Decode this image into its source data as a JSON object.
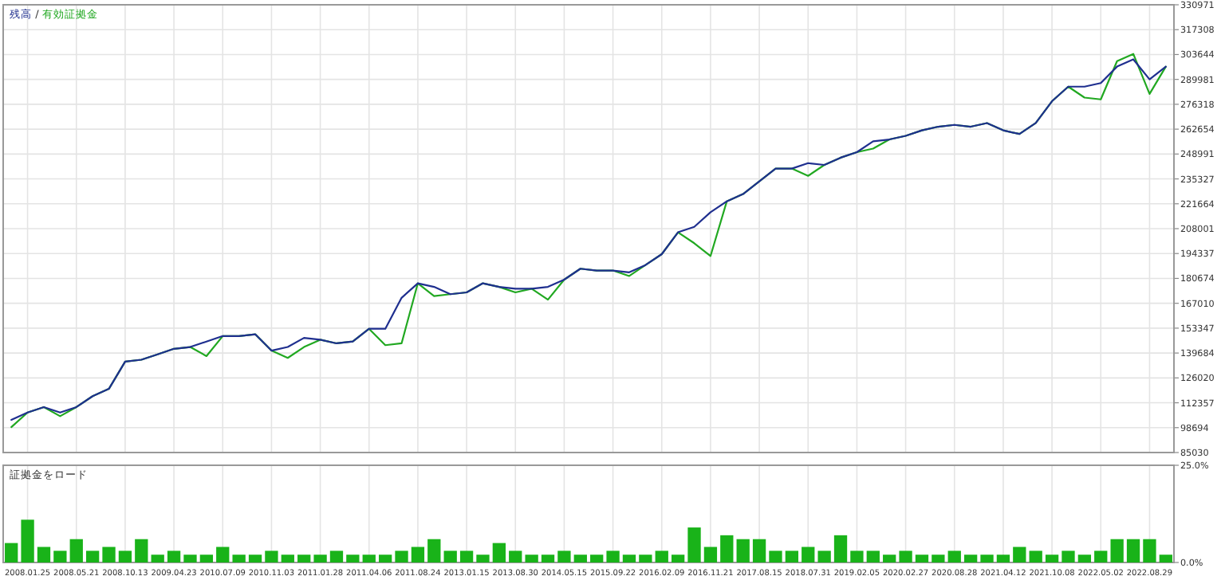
{
  "chart_data": [
    {
      "type": "line",
      "legend": "top left",
      "annotations": [
        "/"
      ],
      "grid": true,
      "tick_labels": "y",
      "ylim": [
        85030,
        330971
      ],
      "categories": [
        null,
        "2008.01.25",
        null,
        null,
        "2008.05.21",
        null,
        null,
        "2008.10.13",
        null,
        null,
        "2009.04.23",
        null,
        null,
        "2010.07.09",
        null,
        null,
        "2010.11.03",
        null,
        null,
        "2011.01.28",
        null,
        null,
        "2011.04.06",
        null,
        null,
        "2011.08.24",
        null,
        null,
        "2013.01.15",
        null,
        null,
        "2013.08.30",
        null,
        null,
        "2014.05.15",
        null,
        null,
        "2015.09.22",
        null,
        null,
        "2016.02.09",
        null,
        null,
        "2016.11.21",
        null,
        null,
        "2017.08.15",
        null,
        null,
        "2018.07.31",
        null,
        null,
        "2019.02.05",
        null,
        null,
        "2020.02.27",
        null,
        null,
        "2020.08.28",
        null,
        null,
        "2021.04.12",
        null,
        null,
        "2021.10.08",
        null,
        null,
        "2022.05.02",
        null,
        null,
        "2022.08.29",
        null
      ],
      "yticks": [
        85030,
        98694,
        112357,
        126020,
        139684,
        153347,
        167010,
        180674,
        194337,
        208001,
        221664,
        235327,
        248991,
        262654,
        276318,
        289981,
        303644,
        317308,
        330971
      ],
      "series": [
        {
          "name": "残高",
          "color": "#1f2f8f",
          "values": [
            103000,
            107000,
            110000,
            107000,
            110000,
            116000,
            120000,
            135000,
            136000,
            139000,
            142000,
            143000,
            146000,
            149000,
            149000,
            150000,
            141000,
            143000,
            148000,
            147000,
            145000,
            146000,
            153000,
            153000,
            170000,
            178000,
            176000,
            172000,
            173000,
            178000,
            176000,
            175000,
            175000,
            176000,
            180000,
            186000,
            185000,
            185000,
            184000,
            188000,
            194000,
            206000,
            209000,
            217000,
            223000,
            227000,
            234000,
            241000,
            241000,
            244000,
            243000,
            247000,
            250000,
            256000,
            257000,
            259000,
            262000,
            264000,
            265000,
            264000,
            266000,
            262000,
            260000,
            266000,
            278000,
            286000,
            286000,
            288000,
            297000,
            301000,
            290000,
            297000
          ]
        },
        {
          "name": "有効証拠金",
          "color": "#21a821",
          "values": [
            99000,
            107000,
            110000,
            105000,
            110000,
            116000,
            120000,
            135000,
            136000,
            139000,
            142000,
            143000,
            138000,
            149000,
            149000,
            150000,
            141000,
            137000,
            143000,
            147000,
            145000,
            146000,
            153000,
            144000,
            145000,
            178000,
            171000,
            172000,
            173000,
            178000,
            176000,
            173000,
            175000,
            169000,
            180000,
            186000,
            185000,
            185000,
            182000,
            188000,
            194000,
            206000,
            200000,
            193000,
            223000,
            227000,
            234000,
            241000,
            241000,
            237000,
            243000,
            247000,
            250000,
            252000,
            257000,
            259000,
            262000,
            264000,
            265000,
            264000,
            266000,
            262000,
            260000,
            266000,
            278000,
            286000,
            280000,
            279000,
            300000,
            304000,
            282000,
            297000
          ]
        }
      ]
    },
    {
      "type": "bar",
      "title": "証拠金をロード",
      "grid": "x",
      "color": "#19b319",
      "ylim": [
        0,
        25
      ],
      "categories": [
        null,
        "2008.01.25",
        null,
        null,
        "2008.05.21",
        null,
        null,
        "2008.10.13",
        null,
        null,
        "2009.04.23",
        null,
        null,
        "2010.07.09",
        null,
        null,
        "2010.11.03",
        null,
        null,
        "2011.01.28",
        null,
        null,
        "2011.04.06",
        null,
        null,
        "2011.08.24",
        null,
        null,
        "2013.01.15",
        null,
        null,
        "2013.08.30",
        null,
        null,
        "2014.05.15",
        null,
        null,
        "2015.09.22",
        null,
        null,
        "2016.02.09",
        null,
        null,
        "2016.11.21",
        null,
        null,
        "2017.08.15",
        null,
        null,
        "2018.07.31",
        null,
        null,
        "2019.02.05",
        null,
        null,
        "2020.02.27",
        null,
        null,
        "2020.08.28",
        null,
        null,
        "2021.04.12",
        null,
        null,
        "2021.10.08",
        null,
        null,
        "2022.05.02",
        null,
        null,
        "2022.08.29",
        null
      ],
      "yticks": [
        {
          "value": 0,
          "label": "0.0%"
        },
        {
          "value": 25,
          "label": "25.0%"
        }
      ],
      "values": [
        5,
        11,
        4,
        3,
        6,
        3,
        4,
        3,
        6,
        2,
        3,
        2,
        2,
        4,
        2,
        2,
        3,
        2,
        2,
        2,
        3,
        2,
        2,
        2,
        3,
        4,
        6,
        3,
        3,
        2,
        5,
        3,
        2,
        2,
        3,
        2,
        2,
        3,
        2,
        2,
        3,
        2,
        9,
        4,
        7,
        6,
        6,
        3,
        3,
        4,
        3,
        7,
        3,
        3,
        2,
        3,
        2,
        2,
        3,
        2,
        2,
        2,
        4,
        3,
        2,
        3,
        2,
        3,
        6,
        6,
        6,
        2
      ]
    }
  ]
}
